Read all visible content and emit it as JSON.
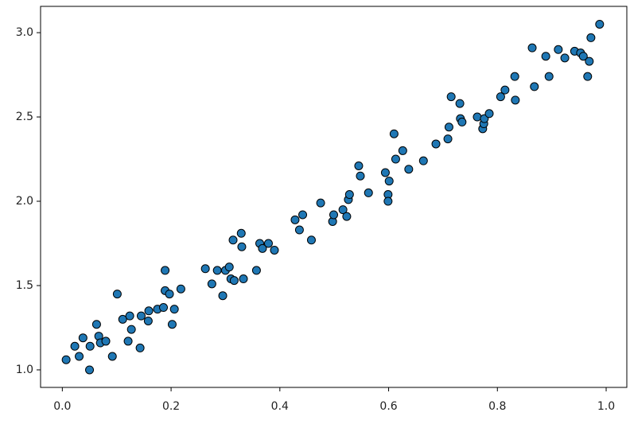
{
  "chart_data": {
    "type": "scatter",
    "color": "#1f77b4",
    "edgecolor": "#000000",
    "grid": false,
    "xlim": [
      -0.04,
      1.038
    ],
    "ylim": [
      0.896,
      3.156
    ],
    "xticks": [
      {
        "value": 0,
        "label": "0.0"
      },
      {
        "value": 0.2,
        "label": "0.2"
      },
      {
        "value": 0.4,
        "label": "0.4"
      },
      {
        "value": 0.6,
        "label": "0.6"
      },
      {
        "value": 0.8,
        "label": "0.8"
      },
      {
        "value": 1,
        "label": "1.0"
      }
    ],
    "yticks": [
      {
        "value": 1,
        "label": "1.0"
      },
      {
        "value": 1.5,
        "label": "1.5"
      },
      {
        "value": 2,
        "label": "2.0"
      },
      {
        "value": 2.5,
        "label": "2.5"
      },
      {
        "value": 3,
        "label": "3.0"
      }
    ],
    "x": [
      0.007,
      0.023,
      0.031,
      0.038,
      0.05,
      0.051,
      0.063,
      0.067,
      0.07,
      0.08,
      0.092,
      0.101,
      0.111,
      0.121,
      0.124,
      0.127,
      0.143,
      0.145,
      0.158,
      0.159,
      0.175,
      0.186,
      0.189,
      0.189,
      0.197,
      0.202,
      0.206,
      0.218,
      0.263,
      0.275,
      0.285,
      0.295,
      0.3,
      0.307,
      0.31,
      0.314,
      0.316,
      0.329,
      0.33,
      0.333,
      0.357,
      0.363,
      0.368,
      0.379,
      0.39,
      0.428,
      0.436,
      0.442,
      0.458,
      0.475,
      0.497,
      0.499,
      0.516,
      0.523,
      0.526,
      0.528,
      0.545,
      0.548,
      0.563,
      0.594,
      0.599,
      0.599,
      0.601,
      0.61,
      0.613,
      0.626,
      0.637,
      0.664,
      0.687,
      0.709,
      0.711,
      0.715,
      0.731,
      0.732,
      0.735,
      0.763,
      0.773,
      0.775,
      0.776,
      0.785,
      0.806,
      0.814,
      0.833,
      0.832,
      0.864,
      0.868,
      0.889,
      0.895,
      0.912,
      0.924,
      0.942,
      0.953,
      0.958,
      0.966,
      0.969,
      0.972,
      0.988
    ],
    "values": [
      1.06,
      1.14,
      1.08,
      1.19,
      1.0,
      1.14,
      1.27,
      1.2,
      1.16,
      1.17,
      1.08,
      1.45,
      1.3,
      1.17,
      1.32,
      1.24,
      1.13,
      1.32,
      1.29,
      1.35,
      1.36,
      1.37,
      1.59,
      1.47,
      1.45,
      1.27,
      1.36,
      1.48,
      1.6,
      1.51,
      1.59,
      1.44,
      1.59,
      1.61,
      1.54,
      1.77,
      1.53,
      1.81,
      1.73,
      1.54,
      1.59,
      1.75,
      1.72,
      1.75,
      1.71,
      1.89,
      1.83,
      1.92,
      1.77,
      1.99,
      1.88,
      1.92,
      1.95,
      1.91,
      2.01,
      2.04,
      2.21,
      2.15,
      2.05,
      2.17,
      2.04,
      2.0,
      2.12,
      2.4,
      2.25,
      2.3,
      2.19,
      2.24,
      2.34,
      2.37,
      2.44,
      2.62,
      2.58,
      2.49,
      2.47,
      2.5,
      2.43,
      2.46,
      2.49,
      2.52,
      2.62,
      2.66,
      2.6,
      2.74,
      2.91,
      2.68,
      2.86,
      2.74,
      2.9,
      2.85,
      2.89,
      2.88,
      2.86,
      2.74,
      2.83,
      2.97,
      3.05
    ]
  }
}
